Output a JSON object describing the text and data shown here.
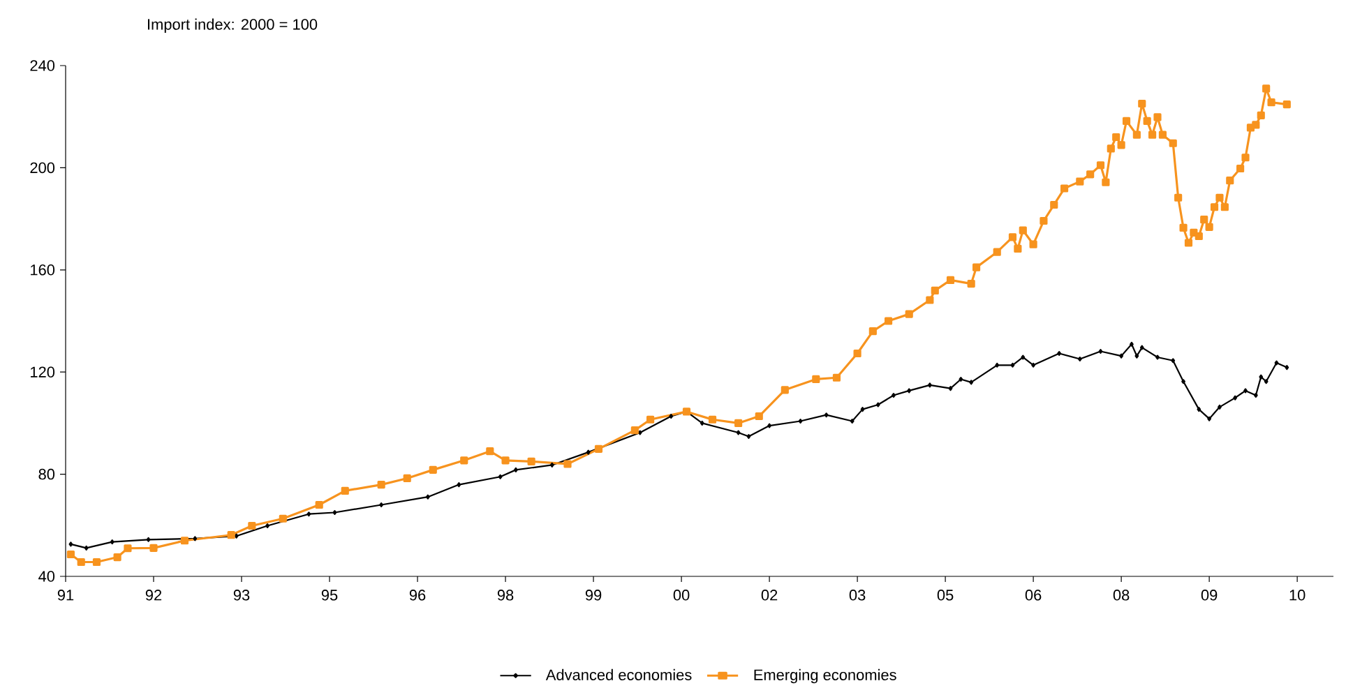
{
  "chart_data": {
    "type": "line",
    "title": "Import index: 2000 = 100",
    "xlim": [
      "1991-01",
      "2011-06"
    ],
    "xticks": [
      {
        "value": "1991-01",
        "label": "91"
      },
      {
        "value": "1992-06",
        "label": "92"
      },
      {
        "value": "1993-11",
        "label": "93"
      },
      {
        "value": "1995-04",
        "label": "95"
      },
      {
        "value": "1996-09",
        "label": "96"
      },
      {
        "value": "1998-02",
        "label": "98"
      },
      {
        "value": "1999-07",
        "label": "99"
      },
      {
        "value": "2000-12",
        "label": "00"
      },
      {
        "value": "2002-05",
        "label": "02"
      },
      {
        "value": "2003-10",
        "label": "03"
      },
      {
        "value": "2005-03",
        "label": "05"
      },
      {
        "value": "2006-08",
        "label": "06"
      },
      {
        "value": "2008-01",
        "label": "08"
      },
      {
        "value": "2009-06",
        "label": "09"
      },
      {
        "value": "2010-11",
        "label": "10"
      }
    ],
    "ylim": [
      40,
      240
    ],
    "yticks": [
      40,
      80,
      120,
      160,
      200,
      240
    ],
    "grid": false,
    "legend": "bottom",
    "line_style": "solid",
    "series": [
      {
        "name": "Advanced economies",
        "color": "#000000",
        "marker": "diamond",
        "x": [
          "1991-02",
          "1991-05",
          "1991-10",
          "1992-05",
          "1993-02",
          "1993-10",
          "1994-04",
          "1994-12",
          "1995-05",
          "1996-02",
          "1996-11",
          "1997-05",
          "1998-01",
          "1998-04",
          "1998-11",
          "1999-06",
          "2000-04",
          "2000-10",
          "2001-01",
          "2001-04",
          "2001-11",
          "2002-01",
          "2002-05",
          "2002-11",
          "2003-04",
          "2003-09",
          "2003-11",
          "2004-02",
          "2004-05",
          "2004-08",
          "2004-12",
          "2005-04",
          "2005-06",
          "2005-08",
          "2006-01",
          "2006-04",
          "2006-06",
          "2006-08",
          "2007-01",
          "2007-05",
          "2007-09",
          "2008-01",
          "2008-03",
          "2008-04",
          "2008-05",
          "2008-08",
          "2008-11",
          "2009-01",
          "2009-04",
          "2009-06",
          "2009-08",
          "2009-11",
          "2010-01",
          "2010-03",
          "2010-04",
          "2010-05",
          "2010-07",
          "2010-09"
        ],
        "values": [
          52.6,
          51.1,
          53.5,
          54.4,
          54.8,
          55.8,
          59.8,
          64.4,
          65,
          68,
          71.1,
          75.9,
          79,
          81.7,
          83.6,
          88.6,
          96.3,
          102.7,
          104.5,
          100,
          96.3,
          94.8,
          99,
          100.8,
          103.2,
          100.8,
          105.4,
          107.2,
          110.9,
          112.7,
          114.9,
          113.6,
          117.2,
          116,
          122.7,
          122.7,
          125.8,
          122.7,
          127.3,
          125.1,
          128.1,
          126.3,
          130.9,
          126.3,
          129.6,
          125.8,
          124.5,
          116.3,
          105.4,
          101.7,
          106.3,
          109.9,
          112.7,
          110.9,
          118.1,
          116.3,
          123.6,
          121.8
        ]
      },
      {
        "name": "Emerging economies",
        "color": "#f7931e",
        "marker": "square",
        "x": [
          "1991-02",
          "1991-04",
          "1991-07",
          "1991-11",
          "1992-01",
          "1992-06",
          "1992-12",
          "1993-09",
          "1994-01",
          "1994-07",
          "1995-02",
          "1995-07",
          "1996-02",
          "1996-07",
          "1996-12",
          "1997-06",
          "1997-11",
          "1998-02",
          "1998-07",
          "1999-02",
          "1999-08",
          "2000-03",
          "2000-06",
          "2001-01",
          "2001-06",
          "2001-11",
          "2002-03",
          "2002-08",
          "2003-02",
          "2003-06",
          "2003-10",
          "2004-01",
          "2004-04",
          "2004-08",
          "2004-12",
          "2005-01",
          "2005-04",
          "2005-08",
          "2005-09",
          "2006-01",
          "2006-04",
          "2006-05",
          "2006-06",
          "2006-08",
          "2006-10",
          "2006-12",
          "2007-02",
          "2007-05",
          "2007-07",
          "2007-09",
          "2007-10",
          "2007-11",
          "2007-12",
          "2008-01",
          "2008-02",
          "2008-04",
          "2008-05",
          "2008-06",
          "2008-07",
          "2008-08",
          "2008-09",
          "2008-11",
          "2008-12",
          "2009-01",
          "2009-02",
          "2009-03",
          "2009-04",
          "2009-05",
          "2009-06",
          "2009-07",
          "2009-08",
          "2009-09",
          "2009-10",
          "2009-12",
          "2010-01",
          "2010-02",
          "2010-03",
          "2010-04",
          "2010-05",
          "2010-06",
          "2010-09"
        ],
        "values": [
          48.6,
          45.6,
          45.6,
          47.5,
          51,
          51.1,
          54,
          56.2,
          59.8,
          62.6,
          68,
          73.5,
          75.9,
          78.4,
          81.7,
          85.4,
          89,
          85.4,
          85,
          84,
          89.9,
          97.2,
          101.4,
          104.5,
          101.4,
          100,
          102.7,
          113,
          117.2,
          117.8,
          127.3,
          136,
          140,
          142.7,
          148.2,
          151.9,
          156,
          154.6,
          161,
          167,
          172.8,
          168.3,
          175.5,
          170,
          179.2,
          185.5,
          191.9,
          194.6,
          197.4,
          201,
          194.3,
          207.5,
          212,
          208.9,
          218.3,
          212.9,
          225.1,
          218.3,
          212.9,
          219.8,
          212.9,
          209.6,
          188.3,
          176.5,
          170.6,
          174.6,
          173.2,
          179.7,
          176.8,
          184.6,
          188.3,
          184.6,
          195,
          199.7,
          204,
          215.7,
          216.8,
          220.5,
          231,
          225.6,
          224.8
        ]
      }
    ]
  }
}
